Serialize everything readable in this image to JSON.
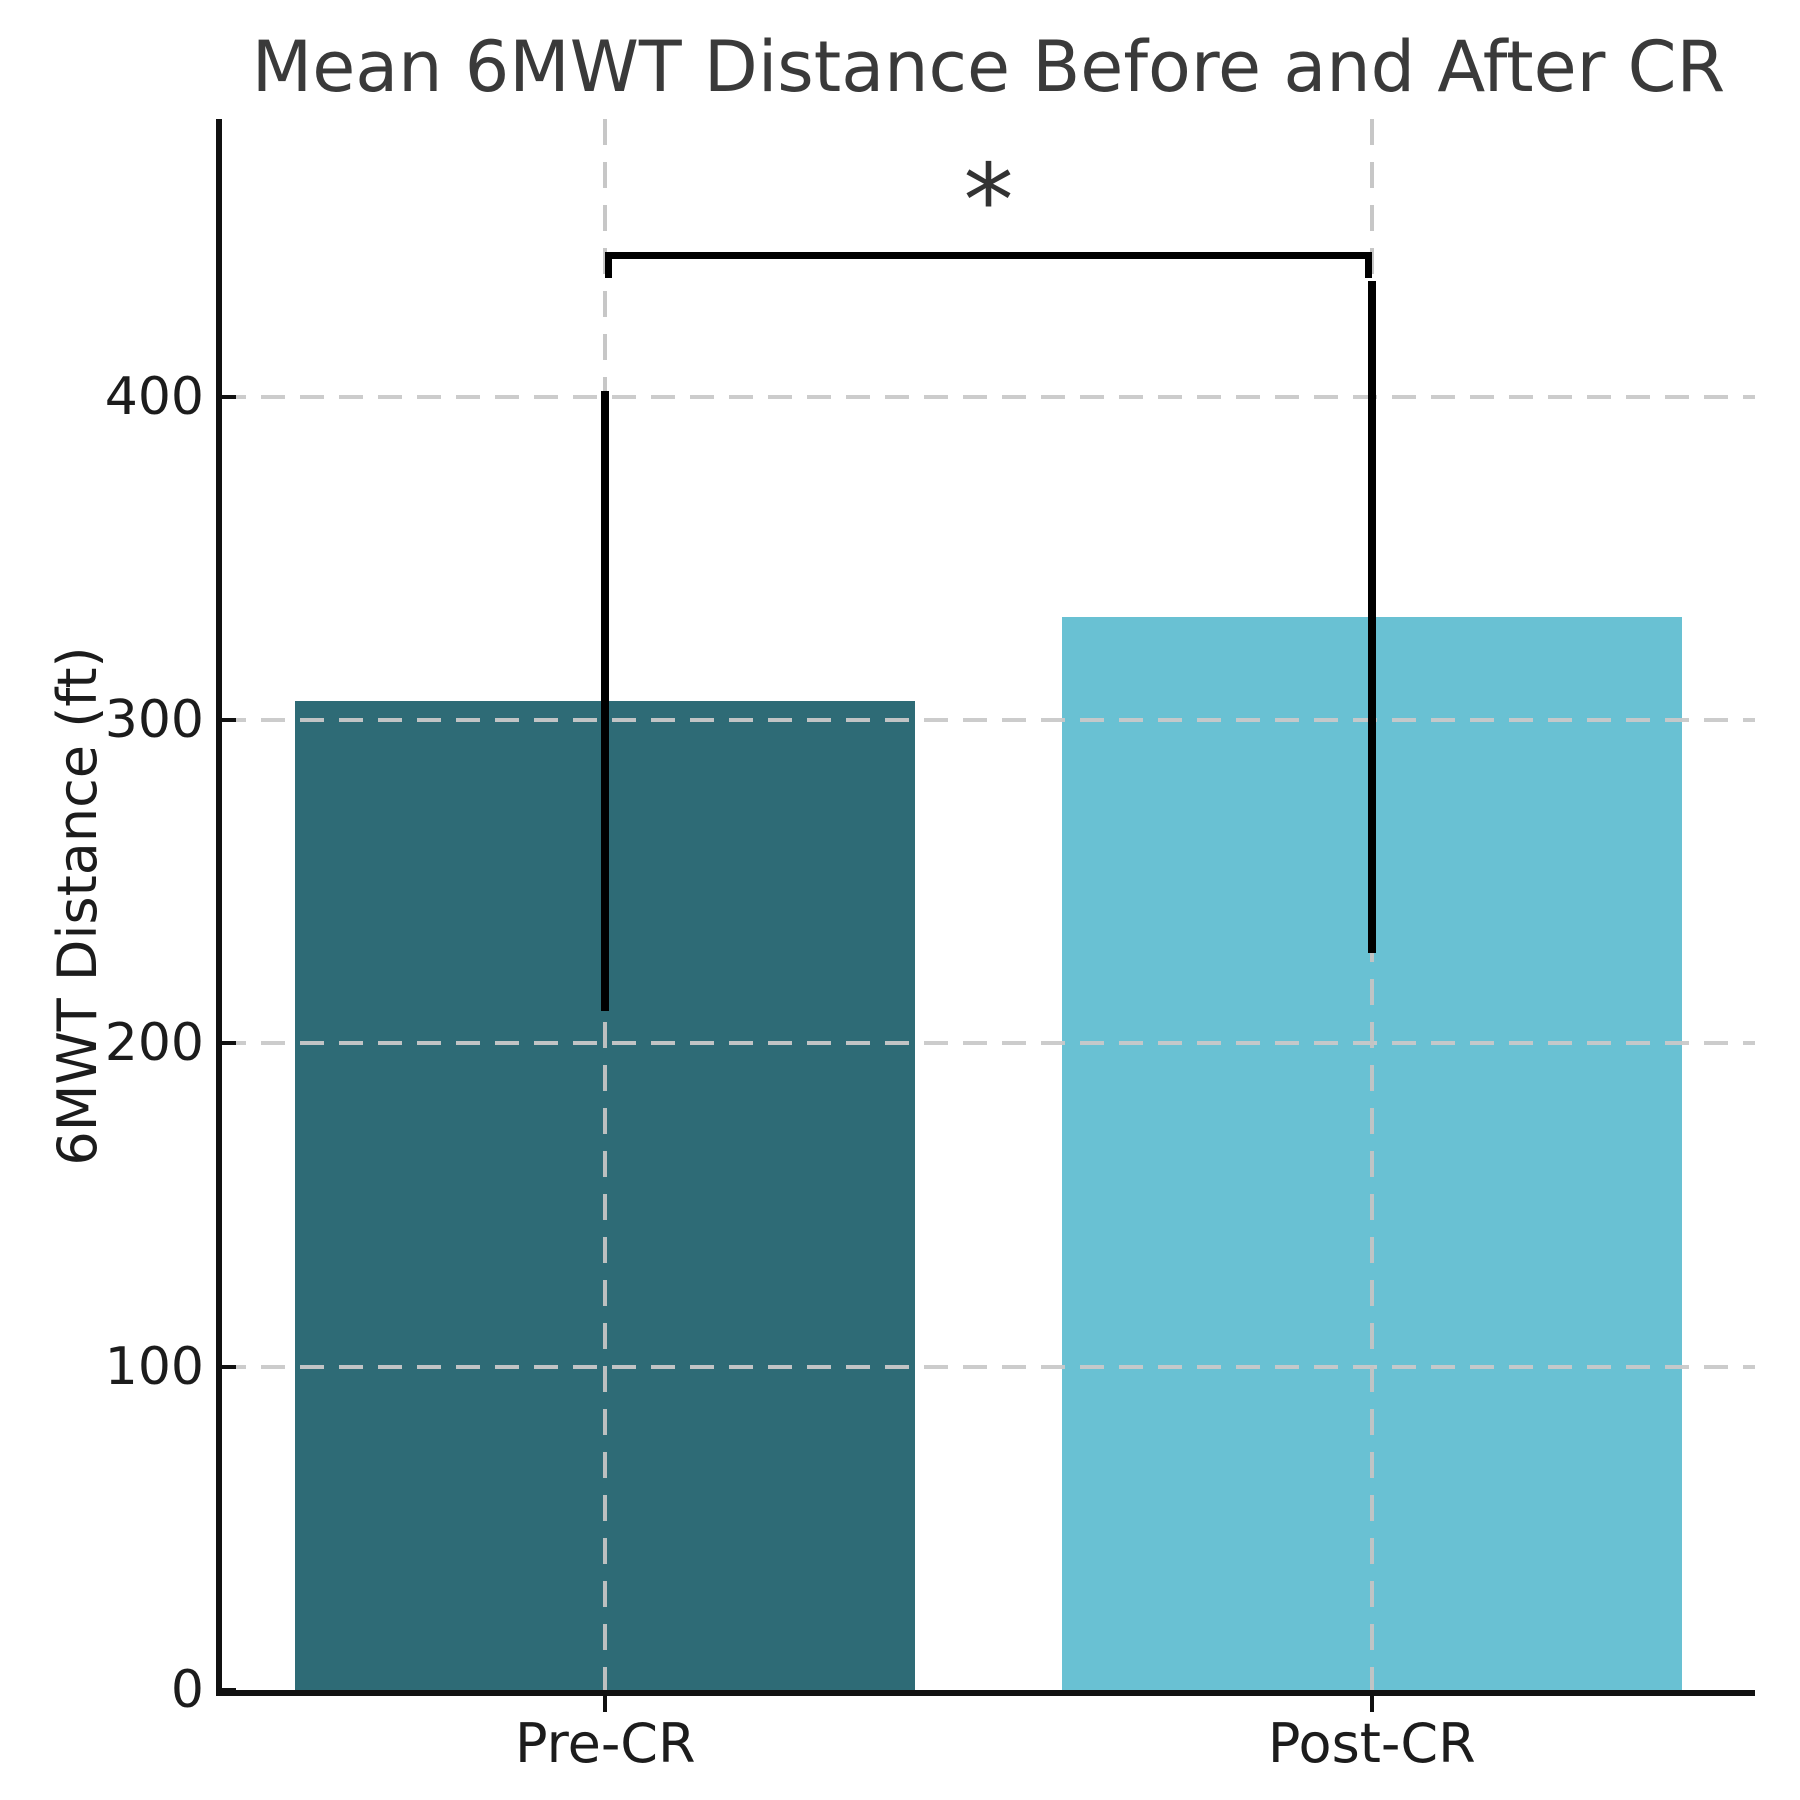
{
  "figure": {
    "background": "#ffffff"
  },
  "chart_data": {
    "type": "bar",
    "title": "Mean 6MWT Distance Before and After CR",
    "xlabel": "",
    "ylabel": "6MWT Distance (ft)",
    "categories": [
      "Pre-CR",
      "Post-CR"
    ],
    "values": [
      306,
      332
    ],
    "errors": [
      96,
      104
    ],
    "bar_colors": [
      "#2E6B76",
      "#69C1D3"
    ],
    "yticks": [
      0,
      100,
      200,
      300,
      400
    ],
    "ylim": [
      0,
      486
    ],
    "grid": {
      "show": true,
      "style": "dashed",
      "color": "#c9c9c9"
    },
    "legend": null,
    "significance": {
      "label": "*",
      "y": 444,
      "between": [
        "Pre-CR",
        "Post-CR"
      ]
    }
  },
  "colors": {
    "title": "#3a3a3a",
    "tick_label": "#1c1c1c",
    "spine": "#111111",
    "error_bar": "#000000",
    "asterisk": "#333333"
  }
}
